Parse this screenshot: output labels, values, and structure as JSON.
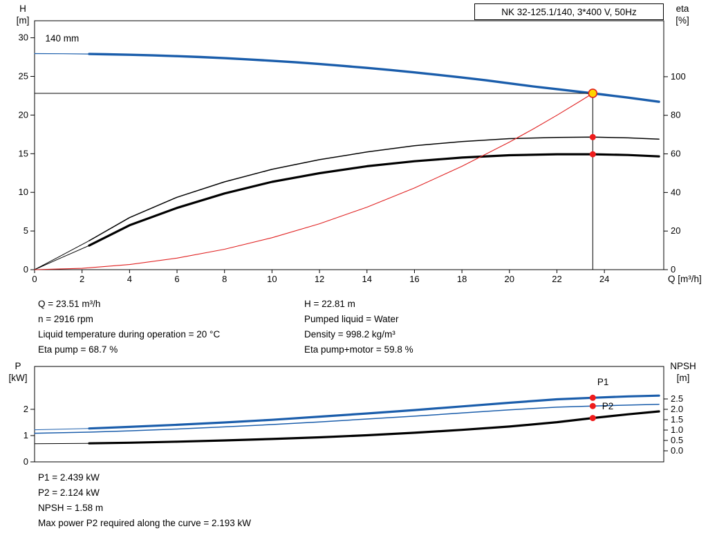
{
  "title_box": {
    "label": "NK 32-125.1/140, 3*400 V, 50Hz"
  },
  "axis_labels": {
    "h": "H",
    "h_unit": "[m]",
    "eta": "eta",
    "eta_unit": "[%]",
    "q": "Q [m³/h]",
    "p": "P",
    "p_unit": "[kW]",
    "npsh": "NPSH",
    "npsh_unit": "[m]"
  },
  "colors": {
    "curve_blue": "#1a5dab",
    "curve_black": "#000000",
    "system_red": "#e02020",
    "marker_red": "#ee1c1c",
    "marker_yellow": "#ffd400"
  },
  "info_top": {
    "left": [
      "Q = 23.51 m³/h",
      "n = 2916 rpm",
      "Liquid temperature during operation = 20 °C",
      "Eta pump = 68.7 %"
    ],
    "right": [
      "H = 22.81 m",
      "Pumped liquid = Water",
      "Density = 998.2 kg/m³",
      "Eta pump+motor = 59.8 %"
    ]
  },
  "info_bottom": [
    "P1 = 2.439 kW",
    "P2 = 2.124 kW",
    "NPSH = 1.58 m",
    "Max power P2 required along the curve = 2.193 kW"
  ],
  "chart_data": [
    {
      "type": "line",
      "title": "NK 32-125.1/140, 3*400 V, 50Hz",
      "x_axis": {
        "label": "Q [m³/h]",
        "min": 0,
        "max": 26.5,
        "ticks": [
          [
            0,
            "0"
          ],
          [
            2,
            "2"
          ],
          [
            4,
            "4"
          ],
          [
            6,
            "6"
          ],
          [
            8,
            "8"
          ],
          [
            10,
            "10"
          ],
          [
            12,
            "12"
          ],
          [
            14,
            "14"
          ],
          [
            16,
            "16"
          ],
          [
            18,
            "18"
          ],
          [
            20,
            "20"
          ],
          [
            22,
            "22"
          ],
          [
            24,
            "24"
          ]
        ]
      },
      "y_left": {
        "label": "H [m]",
        "min": 0,
        "max": 32.2,
        "ticks": [
          [
            0,
            "0"
          ],
          [
            5,
            "5"
          ],
          [
            10,
            "10"
          ],
          [
            15,
            "15"
          ],
          [
            20,
            "20"
          ],
          [
            25,
            "25"
          ],
          [
            30,
            "30"
          ]
        ]
      },
      "y_right": {
        "label": "eta [%]",
        "min": 0,
        "max": 129,
        "ticks": [
          [
            0,
            "0"
          ],
          [
            20,
            "20"
          ],
          [
            40,
            "40"
          ],
          [
            60,
            "60"
          ],
          [
            80,
            "80"
          ],
          [
            100,
            "100"
          ]
        ]
      },
      "series": [
        {
          "name": "head-curve-lead",
          "axis": "left",
          "color": "#1a5dab",
          "width": 1.2,
          "points": [
            [
              0,
              27.95
            ],
            [
              1.2,
              27.93
            ],
            [
              2.3,
              27.9
            ]
          ]
        },
        {
          "name": "head-curve-140mm",
          "axis": "left",
          "color": "#1a5dab",
          "width": 3.4,
          "points": [
            [
              2.3,
              27.9
            ],
            [
              3,
              27.86
            ],
            [
              4,
              27.8
            ],
            [
              5,
              27.72
            ],
            [
              6,
              27.62
            ],
            [
              7,
              27.5
            ],
            [
              8,
              27.36
            ],
            [
              9,
              27.2
            ],
            [
              10,
              27.02
            ],
            [
              11,
              26.82
            ],
            [
              12,
              26.6
            ],
            [
              13,
              26.36
            ],
            [
              14,
              26.1
            ],
            [
              15,
              25.82
            ],
            [
              16,
              25.52
            ],
            [
              17,
              25.2
            ],
            [
              18,
              24.86
            ],
            [
              19,
              24.5
            ],
            [
              20,
              24.1
            ],
            [
              21,
              23.7
            ],
            [
              22,
              23.35
            ],
            [
              23,
              23.0
            ],
            [
              23.51,
              22.81
            ],
            [
              24,
              22.63
            ],
            [
              25,
              22.25
            ],
            [
              26.3,
              21.72
            ]
          ]
        },
        {
          "name": "eta-pump-lead",
          "axis": "right",
          "color": "#000000",
          "width": 1,
          "points": [
            [
              0,
              0
            ],
            [
              1,
              6.5
            ],
            [
              2.3,
              15
            ]
          ]
        },
        {
          "name": "eta-pump-curve",
          "axis": "right",
          "color": "#000000",
          "width": 1.5,
          "points": [
            [
              2.3,
              15
            ],
            [
              4,
              27
            ],
            [
              6,
              37.5
            ],
            [
              8,
              45.5
            ],
            [
              10,
              52
            ],
            [
              12,
              57
            ],
            [
              14,
              61
            ],
            [
              16,
              64.2
            ],
            [
              18,
              66.4
            ],
            [
              20,
              67.9
            ],
            [
              22,
              68.5
            ],
            [
              23.51,
              68.7
            ],
            [
              25,
              68.3
            ],
            [
              26.3,
              67.6
            ]
          ]
        },
        {
          "name": "eta-pump-motor-lead",
          "axis": "right",
          "color": "#000000",
          "width": 1,
          "points": [
            [
              0,
              0
            ],
            [
              1,
              5.5
            ],
            [
              2.3,
              12.5
            ]
          ]
        },
        {
          "name": "eta-pump-motor-curve",
          "axis": "right",
          "color": "#000000",
          "width": 3.2,
          "points": [
            [
              2.3,
              12.5
            ],
            [
              4,
              23
            ],
            [
              6,
              32
            ],
            [
              8,
              39.5
            ],
            [
              10,
              45.5
            ],
            [
              12,
              50
            ],
            [
              14,
              53.6
            ],
            [
              16,
              56.2
            ],
            [
              18,
              58.1
            ],
            [
              20,
              59.3
            ],
            [
              22,
              59.8
            ],
            [
              23.51,
              59.8
            ],
            [
              25,
              59.4
            ],
            [
              26.3,
              58.7
            ]
          ]
        },
        {
          "name": "system-curve",
          "axis": "left",
          "color": "#e02020",
          "width": 1.1,
          "points": [
            [
              0,
              0
            ],
            [
              2,
              0.17
            ],
            [
              4,
              0.66
            ],
            [
              6,
              1.49
            ],
            [
              8,
              2.64
            ],
            [
              10,
              4.13
            ],
            [
              12,
              5.94
            ],
            [
              14,
              8.09
            ],
            [
              16,
              10.56
            ],
            [
              18,
              13.37
            ],
            [
              20,
              16.5
            ],
            [
              21,
              18.19
            ],
            [
              22,
              19.97
            ],
            [
              23,
              21.83
            ],
            [
              23.51,
              22.81
            ]
          ]
        }
      ],
      "lines": [
        {
          "type": "h",
          "axis": "left",
          "y": 22.81,
          "x1": 0,
          "x2": 23.51,
          "color": "#000000",
          "width": 1
        },
        {
          "type": "v",
          "axis": "left",
          "x": 23.51,
          "y1": 0,
          "y2": 22.81,
          "color": "#000000",
          "width": 1
        }
      ],
      "markers": [
        {
          "name": "duty-point",
          "axis": "left",
          "x": 23.51,
          "y": 22.81,
          "r": 6,
          "fill": "#ffd400",
          "stroke": "#e02020"
        },
        {
          "name": "eta-pump-point",
          "axis": "right",
          "x": 23.51,
          "y": 68.7,
          "r": 4.5,
          "fill": "#ee1c1c"
        },
        {
          "name": "eta-pump-motor-point",
          "axis": "right",
          "x": 23.51,
          "y": 59.8,
          "r": 4.5,
          "fill": "#ee1c1c"
        }
      ],
      "annotations": [
        {
          "text": "140 mm",
          "axis": "left",
          "x": 0.45,
          "y": 29.5,
          "anchor": "start",
          "color": "#000000"
        }
      ]
    },
    {
      "type": "line",
      "title": "Power and NPSH",
      "x_axis": {
        "label": "",
        "min": 0,
        "max": 26.5,
        "ticks": []
      },
      "y_left": {
        "label": "P [kW]",
        "min": 0,
        "max": 3.63,
        "ticks": [
          [
            0,
            "0"
          ],
          [
            1,
            "1"
          ],
          [
            2,
            "2"
          ]
        ]
      },
      "y_right": {
        "label": "NPSH [m]",
        "min": -0.533,
        "max": 4.067,
        "ticks": [
          [
            0,
            "0.0"
          ],
          [
            0.5,
            "0.5"
          ],
          [
            1,
            "1.0"
          ],
          [
            1.5,
            "1.5"
          ],
          [
            2,
            "2.0"
          ],
          [
            2.5,
            "2.5"
          ]
        ]
      },
      "series": [
        {
          "name": "p1-lead",
          "axis": "left",
          "color": "#1a5dab",
          "width": 1,
          "points": [
            [
              0,
              1.22
            ],
            [
              2.3,
              1.27
            ]
          ]
        },
        {
          "name": "p1-curve",
          "axis": "left",
          "color": "#1a5dab",
          "width": 3.2,
          "points": [
            [
              2.3,
              1.27
            ],
            [
              4,
              1.33
            ],
            [
              6,
              1.41
            ],
            [
              8,
              1.5
            ],
            [
              10,
              1.6
            ],
            [
              12,
              1.72
            ],
            [
              14,
              1.84
            ],
            [
              16,
              1.97
            ],
            [
              18,
              2.11
            ],
            [
              20,
              2.25
            ],
            [
              22,
              2.38
            ],
            [
              23.51,
              2.439
            ],
            [
              25,
              2.49
            ],
            [
              26.3,
              2.52
            ]
          ]
        },
        {
          "name": "p2-curve",
          "axis": "left",
          "color": "#1a5dab",
          "width": 1.5,
          "points": [
            [
              0,
              1.09
            ],
            [
              2.3,
              1.13
            ],
            [
              4,
              1.18
            ],
            [
              6,
              1.25
            ],
            [
              8,
              1.33
            ],
            [
              10,
              1.42
            ],
            [
              12,
              1.52
            ],
            [
              14,
              1.63
            ],
            [
              16,
              1.74
            ],
            [
              18,
              1.86
            ],
            [
              20,
              1.98
            ],
            [
              22,
              2.08
            ],
            [
              23.51,
              2.124
            ],
            [
              25,
              2.16
            ],
            [
              26.3,
              2.19
            ]
          ]
        },
        {
          "name": "npsh-lead",
          "axis": "right",
          "color": "#000000",
          "width": 1,
          "points": [
            [
              0,
              0.34
            ],
            [
              2.3,
              0.36
            ]
          ]
        },
        {
          "name": "npsh-curve",
          "axis": "right",
          "color": "#000000",
          "width": 3.2,
          "points": [
            [
              2.3,
              0.36
            ],
            [
              4,
              0.39
            ],
            [
              6,
              0.44
            ],
            [
              8,
              0.5
            ],
            [
              10,
              0.57
            ],
            [
              12,
              0.65
            ],
            [
              14,
              0.75
            ],
            [
              16,
              0.87
            ],
            [
              18,
              1.01
            ],
            [
              20,
              1.17
            ],
            [
              22,
              1.38
            ],
            [
              23.51,
              1.58
            ],
            [
              25,
              1.76
            ],
            [
              26.3,
              1.9
            ]
          ]
        }
      ],
      "lines": [],
      "markers": [
        {
          "name": "p1-point",
          "axis": "left",
          "x": 23.51,
          "y": 2.439,
          "r": 4.5,
          "fill": "#ee1c1c"
        },
        {
          "name": "p2-point",
          "axis": "left",
          "x": 23.51,
          "y": 2.124,
          "r": 4.5,
          "fill": "#ee1c1c"
        },
        {
          "name": "npsh-point",
          "axis": "right",
          "x": 23.51,
          "y": 1.58,
          "r": 4.5,
          "fill": "#ee1c1c"
        }
      ],
      "annotations": [
        {
          "text": "P1",
          "axis": "left",
          "x": 23.7,
          "y": 2.92,
          "anchor": "start",
          "color": "#1a5dab"
        },
        {
          "text": "P2",
          "axis": "left",
          "x": 23.9,
          "y": 2.0,
          "anchor": "start",
          "color": "#1a5dab"
        }
      ]
    }
  ]
}
